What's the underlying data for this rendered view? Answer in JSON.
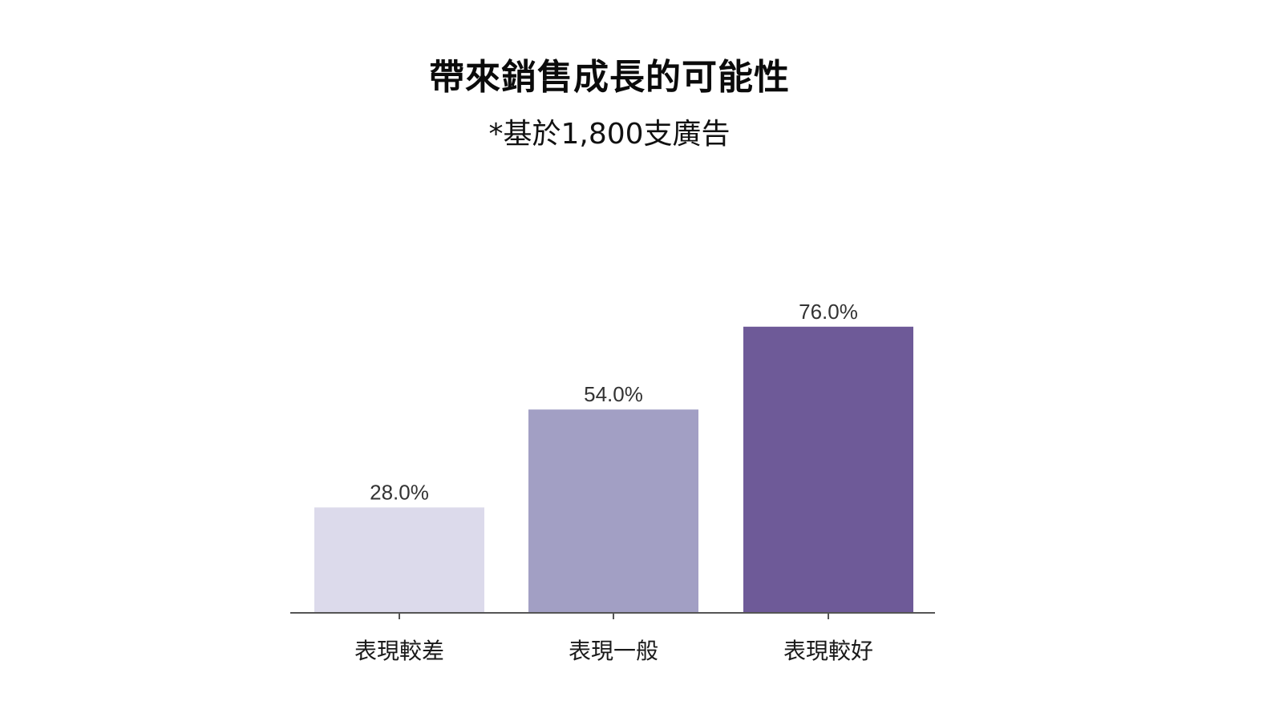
{
  "chart_data": {
    "type": "bar",
    "title": "帶來銷售成長的可能性",
    "subtitle": "*基於1,800支廣告",
    "categories": [
      "表現較差",
      "表現一般",
      "表現較好"
    ],
    "values": [
      28.0,
      54.0,
      76.0
    ],
    "value_labels": [
      "28.0%",
      "54.0%",
      "76.0%"
    ],
    "colors": [
      "#dcdaeb",
      "#a29fc4",
      "#6e5a98"
    ],
    "xlabel": "",
    "ylabel": "",
    "ylim": [
      0,
      100
    ],
    "grid": false,
    "legend": "none"
  }
}
